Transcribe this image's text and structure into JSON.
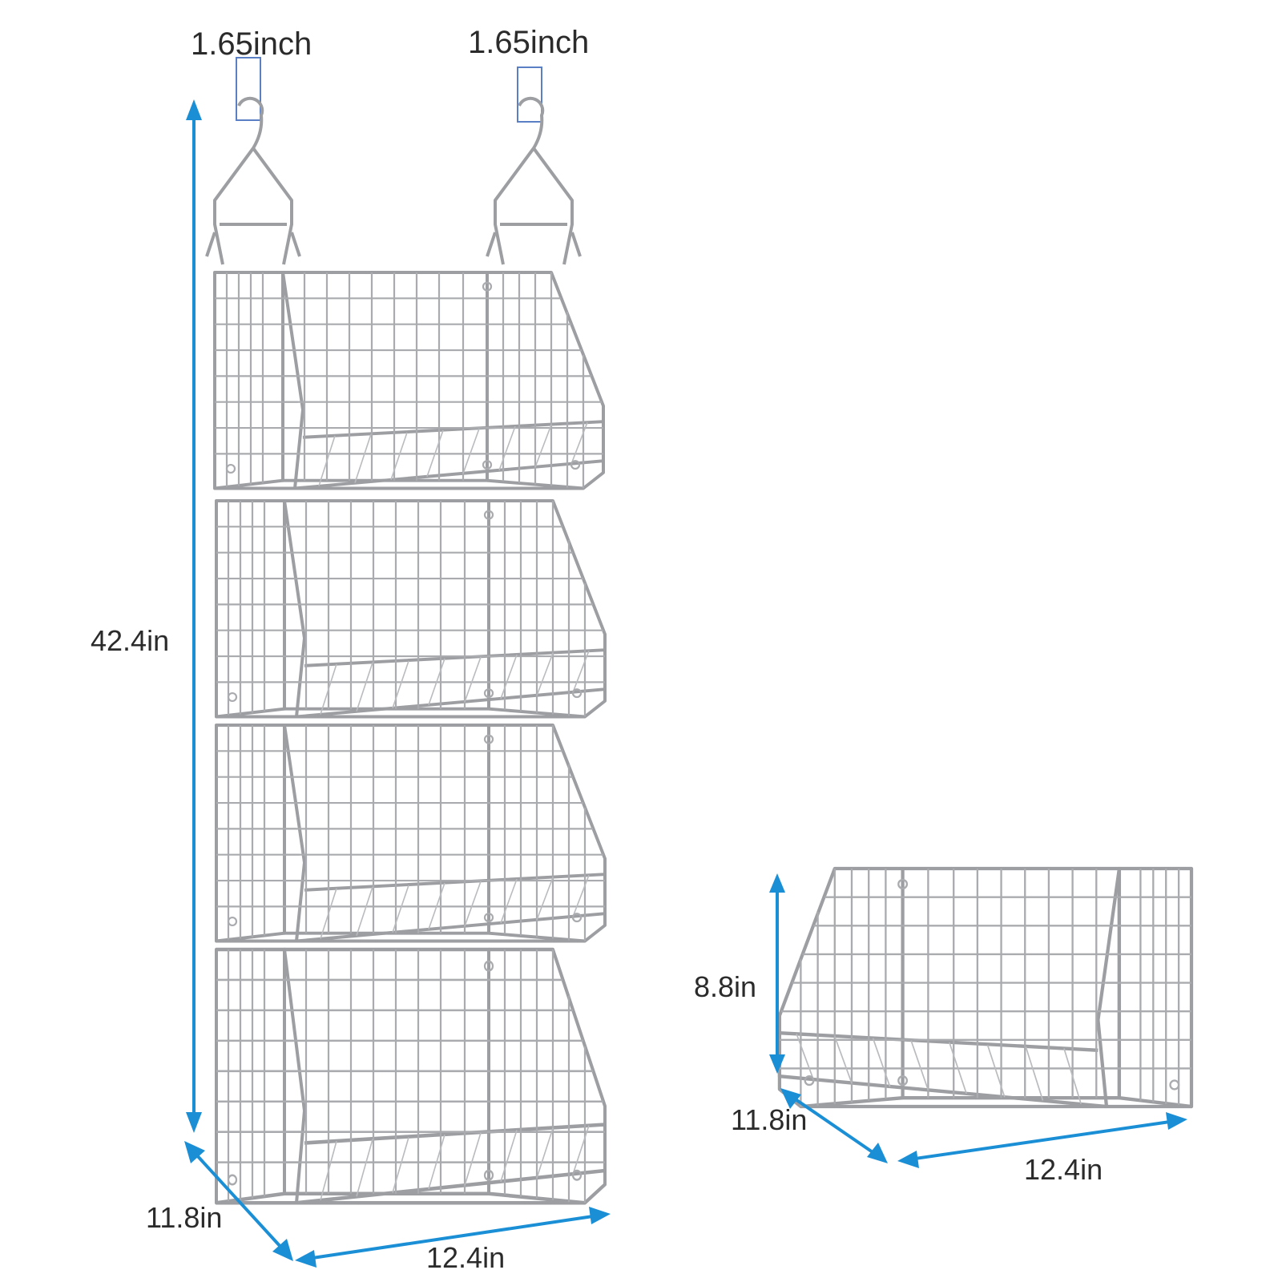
{
  "tower": {
    "hook_left_label": "1.65inch",
    "hook_right_label": "1.65inch",
    "height_label": "42.4in",
    "depth_label": "11.8in",
    "width_label": "12.4in",
    "basket_count": 4
  },
  "single_basket": {
    "height_label": "8.8in",
    "depth_label": "11.8in",
    "width_label": "12.4in"
  },
  "colors": {
    "arrow": "#1b8fd6",
    "wire": "#a9abae",
    "hook_marker": "#5a7fc4"
  }
}
